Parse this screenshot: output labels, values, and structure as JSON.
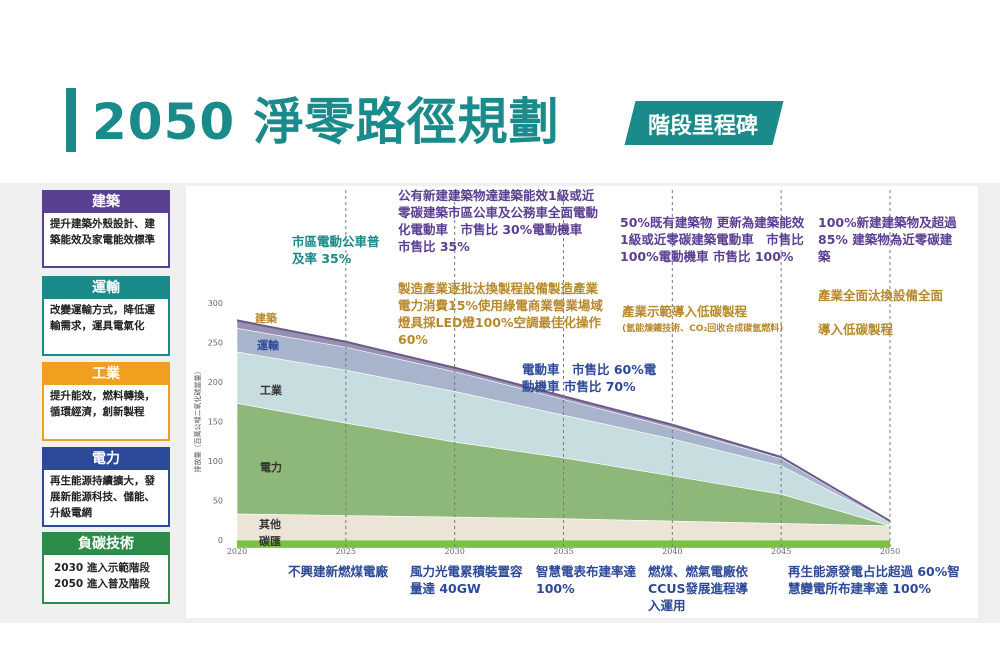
{
  "header": {
    "title": "2050 淨零路徑規劃",
    "badge": "階段里程碑"
  },
  "sidebar": {
    "cards": [
      {
        "title": "建築",
        "body": "提升建築外殼設計、建築能效及家電能效標準",
        "color": "#5b3f93"
      },
      {
        "title": "運輸",
        "body": "改變運輸方式，降低運輸需求，運具電氣化",
        "color": "#1a8a8a"
      },
      {
        "title": "工業",
        "body": "提升能效，燃料轉換，循環經濟，創新製程",
        "color": "#f0a01e"
      },
      {
        "title": "電力",
        "body": "再生能源持續擴大，發展新能源科技、儲能、升級電網",
        "color": "#2d4a9a"
      },
      {
        "title": "負碳技術",
        "body": "2030 進入示範階段 2050 進入普及階段",
        "color": "#2e8b4a"
      }
    ]
  },
  "annotations": {
    "a2025": "市區電動公車普及率 35%",
    "a2030": "公有新建建築物達建築能效1級或近零碳建築市區公車及公務車全面電動化電動車　市售比 30%電動機車 市售比 35%",
    "a2030_industry": "製造產業逐批汰換製程設備製造產業電力消費15%使用綠電商業營業場域燈具採LED燈100%空調最佳化操作60%",
    "a2035": "電動車　市售比 60%電動機車 市售比 70%",
    "a2040": "50%既有建築物 更新為建築能效1級或近零碳建築電動車　市售比 100%電動機車 市售比 100%",
    "a2040_industry": "產業示範導入低碳製程",
    "a2040_industry_note": "(氫能煉鐵技術、CO₂回收合成碳氫燃料)",
    "a2050": "100%新建建築物及超過 85% 建築物為近零碳建築",
    "a2050_industry": "產業全面汰換設備全面導入低碳製程"
  },
  "bottom_milestones": [
    "不興建新燃煤電廠",
    "風力光電累積裝置容量達 40GW",
    "智慧電表布建率達 100%",
    "燃煤、燃氣電廠依CCUS發展進程導入運用",
    "再生能源發電占比超過 60%智慧變電所布建率達 100%"
  ],
  "chart_data": {
    "type": "area",
    "ylabel": "排放量（百萬公噸二氧化碳當量）",
    "ylim": [
      0,
      300
    ],
    "yticks": [
      0,
      50,
      100,
      150,
      200,
      250,
      300
    ],
    "x": [
      2020,
      2025,
      2030,
      2035,
      2040,
      2045,
      2050
    ],
    "series": [
      {
        "name": "碳匯",
        "color": "#7cc242",
        "values": [
          -10,
          -10,
          -10,
          -10,
          -10,
          -10,
          -10
        ]
      },
      {
        "name": "其他",
        "color": "#ede4d8",
        "values": [
          33,
          31,
          29,
          27,
          24,
          21,
          18
        ]
      },
      {
        "name": "電力",
        "color": "#8db87a",
        "values": [
          140,
          117,
          95,
          77,
          57,
          37,
          0
        ]
      },
      {
        "name": "工業",
        "color": "#c8dde0",
        "values": [
          65,
          67,
          64,
          54,
          47,
          36,
          5
        ]
      },
      {
        "name": "運輸",
        "color": "#a8b4cc",
        "values": [
          30,
          29,
          25,
          20,
          14,
          9,
          0
        ]
      },
      {
        "name": "建築",
        "color": "#9890b0",
        "values": [
          10,
          7,
          5,
          4,
          4,
          2,
          1
        ]
      }
    ],
    "label_colors": {
      "建築": "#b8892a",
      "運輸": "#2d4a9a",
      "工業": "#333333",
      "電力": "#333333",
      "其他": "#333333",
      "碳匯": "#333333"
    }
  }
}
